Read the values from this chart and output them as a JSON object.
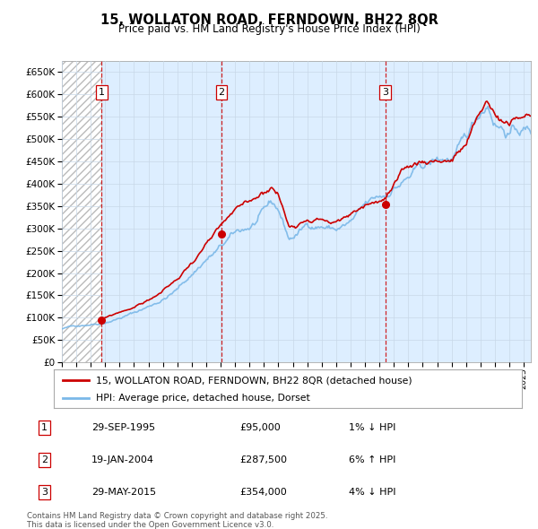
{
  "title": "15, WOLLATON ROAD, FERNDOWN, BH22 8QR",
  "subtitle": "Price paid vs. HM Land Registry's House Price Index (HPI)",
  "ylim": [
    0,
    675000
  ],
  "xlim_start": 1993.0,
  "xlim_end": 2025.5,
  "transactions": [
    {
      "num": 1,
      "date_dec": 1995.75,
      "price": 95000,
      "label": "29-SEP-1995",
      "amount": "£95,000",
      "pct": "1% ↓ HPI"
    },
    {
      "num": 2,
      "date_dec": 2004.05,
      "price": 287500,
      "label": "19-JAN-2004",
      "amount": "£287,500",
      "pct": "6% ↑ HPI"
    },
    {
      "num": 3,
      "date_dec": 2015.41,
      "price": 354000,
      "label": "29-MAY-2015",
      "amount": "£354,000",
      "pct": "4% ↓ HPI"
    }
  ],
  "hpi_color": "#7ab8e8",
  "price_color": "#cc0000",
  "marker_color": "#cc0000",
  "dashed_color": "#cc0000",
  "grid_color": "#c8d8e8",
  "legend_label_price": "15, WOLLATON ROAD, FERNDOWN, BH22 8QR (detached house)",
  "legend_label_hpi": "HPI: Average price, detached house, Dorset",
  "footer_text": "Contains HM Land Registry data © Crown copyright and database right 2025.\nThis data is licensed under the Open Government Licence v3.0.",
  "background_color": "#ddeeff"
}
